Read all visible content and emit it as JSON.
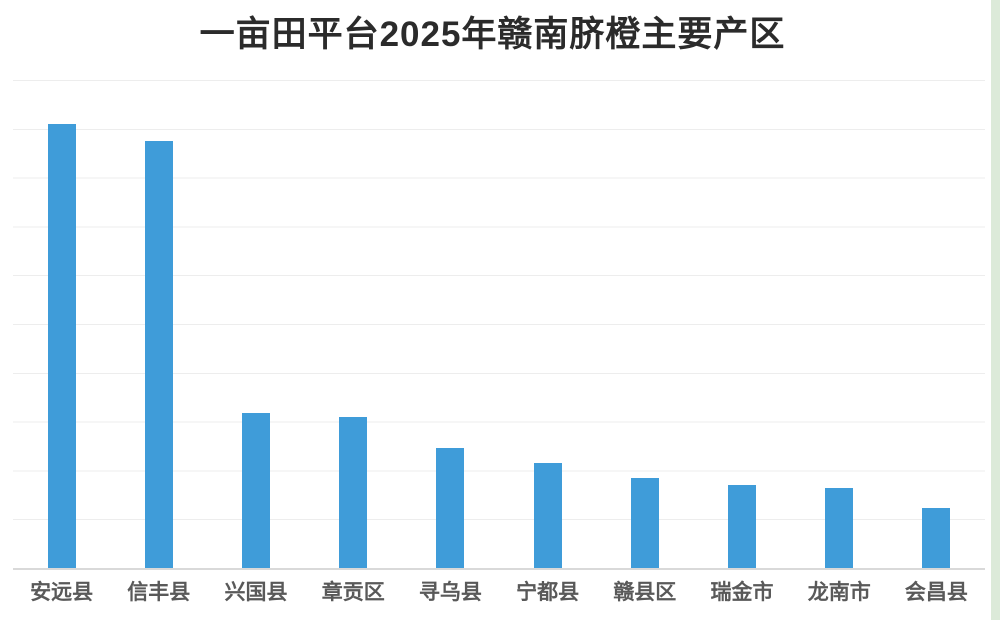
{
  "chart_data": {
    "type": "bar",
    "title": "一亩田平台2025年赣南脐橙主要产区",
    "categories": [
      "安远县",
      "信丰县",
      "兴国县",
      "章贡区",
      "寻乌县",
      "宁都县",
      "赣县区",
      "瑞金市",
      "龙南市",
      "会昌县"
    ],
    "values": [
      91,
      87.5,
      31.8,
      30.9,
      24.6,
      21.6,
      18.5,
      17.1,
      16.3,
      12.4
    ],
    "xlabel": "",
    "ylabel": "",
    "ylim": [
      0,
      100
    ],
    "gridline_step": 10,
    "grid": true,
    "y_tick_labels_visible": false,
    "legend": null,
    "bar_color": "#3f9cd9",
    "gridline_color": "#ededed",
    "axis_line_color": "#d9d9d9",
    "title_color": "#2b2b2b",
    "label_color": "#595959",
    "accent_edge_color": "#dcead9"
  }
}
